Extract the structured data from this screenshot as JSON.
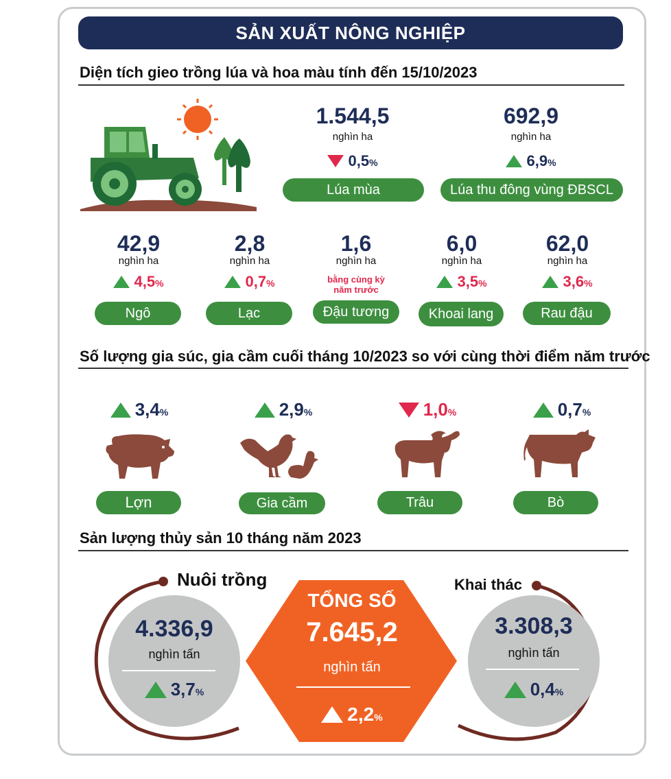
{
  "header": {
    "title": "SẢN XUẤT NÔNG NGHIỆP"
  },
  "crops": {
    "title": "Diện tích gieo trồng lúa và hoa màu tính đến 15/10/2023",
    "main": [
      {
        "value": "1.544,5",
        "unit": "nghìn ha",
        "direction": "down",
        "change": "0,5",
        "pct": "%",
        "label": "Lúa mùa"
      },
      {
        "value": "692,9",
        "unit": "nghìn ha",
        "direction": "up",
        "change": "6,9",
        "pct": "%",
        "label": "Lúa thu đông vùng ĐBSCL"
      }
    ],
    "items": [
      {
        "value": "42,9",
        "unit": "nghìn ha",
        "direction": "up",
        "change": "4,5",
        "pct": "%",
        "label": "Ngô"
      },
      {
        "value": "2,8",
        "unit": "nghìn ha",
        "direction": "up",
        "change": "0,7",
        "pct": "%",
        "label": "Lạc"
      },
      {
        "value": "1,6",
        "unit": "nghìn ha",
        "note_line1": "bằng cùng kỳ",
        "note_line2": "năm trước",
        "label": "Đậu tương"
      },
      {
        "value": "6,0",
        "unit": "nghìn ha",
        "direction": "up",
        "change": "3,5",
        "pct": "%",
        "label": "Khoai lang"
      },
      {
        "value": "62,0",
        "unit": "nghìn ha",
        "direction": "up",
        "change": "3,6",
        "pct": "%",
        "label": "Rau đậu"
      }
    ]
  },
  "livestock": {
    "title": "Số lượng gia súc, gia cầm cuối tháng 10/2023 so với cùng thời điểm năm trước",
    "items": [
      {
        "direction": "up",
        "change": "3,4",
        "pct": "%",
        "label": "Lợn",
        "icon": "pig-icon"
      },
      {
        "direction": "up",
        "change": "2,9",
        "pct": "%",
        "label": "Gia cầm",
        "icon": "poultry-icon"
      },
      {
        "direction": "down",
        "change": "1,0",
        "pct": "%",
        "label": "Trâu",
        "icon": "buffalo-icon"
      },
      {
        "direction": "up",
        "change": "0,7",
        "pct": "%",
        "label": "Bò",
        "icon": "cow-icon"
      }
    ]
  },
  "fishery": {
    "title": "Sản lượng thủy sản 10 tháng năm 2023",
    "aquaculture": {
      "label": "Nuôi trồng",
      "value": "4.336,9",
      "unit": "nghìn tấn",
      "change": "3,7",
      "pct": "%"
    },
    "total": {
      "label": "TỔNG SỐ",
      "value": "7.645,2",
      "unit": "nghìn tấn",
      "change": "2,2",
      "pct": "%"
    },
    "capture": {
      "label": "Khai thác",
      "value": "3.308,3",
      "unit": "nghìn tấn",
      "change": "0,4",
      "pct": "%"
    }
  },
  "colors": {
    "navy": "#1e2d57",
    "green": "#3d8f3f",
    "up": "#3aa04a",
    "down": "#e0284d",
    "orange": "#f06224",
    "brown": "#8b4a3b",
    "grey": "#c4c6c6"
  }
}
